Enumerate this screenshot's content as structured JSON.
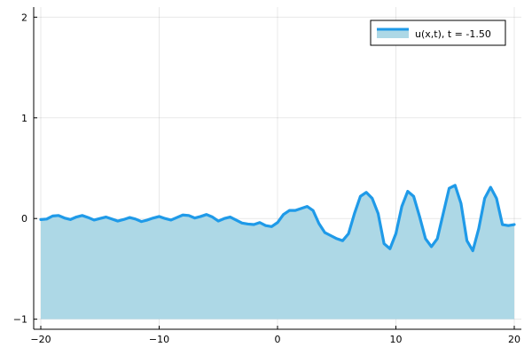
{
  "chart_data": {
    "type": "area",
    "title": "",
    "xlabel": "",
    "ylabel": "",
    "xlim": [
      -20.6,
      20.6
    ],
    "ylim": [
      -1.1,
      2.1
    ],
    "fill_baseline": -1,
    "xticks": [
      -20,
      -10,
      0,
      10,
      20
    ],
    "yticks": [
      -1,
      0,
      1,
      2
    ],
    "xtick_labels": [
      "−20",
      "−10",
      "0",
      "10",
      "20"
    ],
    "ytick_labels": [
      "−1",
      "0",
      "1",
      "2"
    ],
    "grid": true,
    "legend": {
      "position": "top-right",
      "entries": [
        "u(x,t), t = -1.50"
      ]
    },
    "series": [
      {
        "name": "u(x,t), t = -1.50",
        "line_color": "#1f9ae8",
        "fill_color": "#add8e6",
        "x": [
          -20,
          -19.5,
          -19,
          -18.5,
          -18,
          -17.5,
          -17,
          -16.5,
          -16,
          -15.5,
          -15,
          -14.5,
          -14,
          -13.5,
          -13,
          -12.5,
          -12,
          -11.5,
          -11,
          -10.5,
          -10,
          -9.5,
          -9,
          -8.5,
          -8,
          -7.5,
          -7,
          -6.5,
          -6,
          -5.5,
          -5,
          -4.5,
          -4,
          -3.5,
          -3,
          -2.5,
          -2,
          -1.5,
          -1,
          -0.5,
          0,
          0.5,
          1,
          1.5,
          2,
          2.5,
          3,
          3.5,
          4,
          4.5,
          5,
          5.5,
          6,
          6.5,
          7,
          7.5,
          8,
          8.5,
          9,
          9.5,
          10,
          10.5,
          11,
          11.5,
          12,
          12.5,
          13,
          13.5,
          14,
          14.5,
          15,
          15.5,
          16,
          16.5,
          17,
          17.5,
          18,
          18.5,
          19,
          19.5,
          20
        ],
        "y": [
          -0.01,
          -0.005,
          0.025,
          0.03,
          0.005,
          -0.01,
          0.015,
          0.03,
          0.01,
          -0.015,
          0,
          0.015,
          -0.005,
          -0.025,
          -0.01,
          0.01,
          -0.005,
          -0.03,
          -0.015,
          0.005,
          0.02,
          0,
          -0.015,
          0.01,
          0.035,
          0.03,
          0.005,
          0.02,
          0.04,
          0.015,
          -0.025,
          0,
          0.015,
          -0.015,
          -0.045,
          -0.055,
          -0.06,
          -0.04,
          -0.07,
          -0.08,
          -0.04,
          0.04,
          0.08,
          0.08,
          0.1,
          0.12,
          0.08,
          -0.05,
          -0.14,
          -0.17,
          -0.2,
          -0.22,
          -0.15,
          0.05,
          0.22,
          0.26,
          0.2,
          0.05,
          -0.25,
          -0.3,
          -0.15,
          0.12,
          0.27,
          0.22,
          0.02,
          -0.2,
          -0.28,
          -0.2,
          0.05,
          0.3,
          0.33,
          0.15,
          -0.22,
          -0.32,
          -0.1,
          0.2,
          0.31,
          0.2,
          -0.06,
          -0.07,
          -0.06
        ]
      }
    ]
  }
}
